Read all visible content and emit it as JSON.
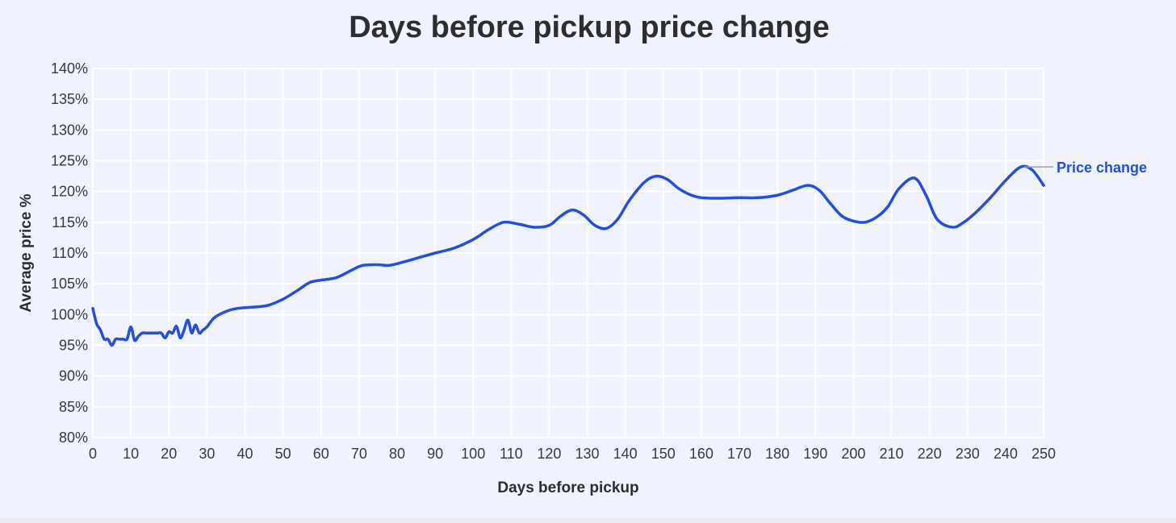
{
  "chart_data": {
    "type": "line",
    "title": "Days before pickup price change",
    "xlabel": "Days before pickup",
    "ylabel": "Average price %",
    "xlim": [
      0,
      250
    ],
    "ylim": [
      80,
      140
    ],
    "x_ticks": [
      0,
      10,
      20,
      30,
      40,
      50,
      60,
      70,
      80,
      90,
      100,
      110,
      120,
      130,
      140,
      150,
      160,
      170,
      180,
      190,
      200,
      210,
      220,
      230,
      240,
      250
    ],
    "x_tick_labels": [
      "0",
      "10",
      "20",
      "30",
      "40",
      "50",
      "60",
      "70",
      "80",
      "90",
      "100",
      "110",
      "120",
      "130",
      "140",
      "150",
      "160",
      "170",
      "180",
      "190",
      "200",
      "210",
      "220",
      "230",
      "240",
      "250"
    ],
    "y_ticks": [
      80,
      85,
      90,
      95,
      100,
      105,
      110,
      115,
      120,
      125,
      130,
      135,
      140
    ],
    "y_tick_labels": [
      "80%",
      "85%",
      "90%",
      "95%",
      "100%",
      "105%",
      "110%",
      "115%",
      "120%",
      "125%",
      "130%",
      "135%",
      "140%"
    ],
    "grid": true,
    "legend": "none",
    "colors": {
      "line": "#264de4",
      "grid": "#ffffff",
      "background": "#f0f3fe",
      "label_leader": "#a0a0a0"
    },
    "series": [
      {
        "name": "Price change",
        "x": [
          0,
          1,
          2,
          3,
          4,
          5,
          6,
          7,
          8,
          9,
          10,
          11,
          12,
          13,
          14,
          15,
          16,
          17,
          18,
          19,
          20,
          21,
          22,
          23,
          24,
          25,
          26,
          27,
          28,
          29,
          30,
          32,
          35,
          38,
          42,
          46,
          50,
          54,
          57,
          60,
          64,
          68,
          71,
          75,
          78,
          82,
          86,
          90,
          95,
          100,
          104,
          108,
          112,
          116,
          120,
          123,
          126,
          129,
          132,
          135,
          138,
          141,
          145,
          148,
          151,
          154,
          157,
          160,
          165,
          170,
          175,
          180,
          184,
          188,
          191,
          194,
          197,
          200,
          203,
          206,
          209,
          212,
          216,
          219,
          222,
          226,
          229,
          232,
          236,
          240,
          244,
          247,
          250
        ],
        "y": [
          101,
          98.5,
          97.5,
          96,
          96,
          95,
          96,
          96,
          96,
          96,
          98,
          95.8,
          96.5,
          97,
          97,
          97,
          97,
          97,
          97,
          96.2,
          97.2,
          97,
          98.1,
          96.2,
          97.5,
          99.1,
          97,
          98.3,
          97,
          97.5,
          98,
          99.5,
          100.5,
          101,
          101.2,
          101.5,
          102.5,
          104,
          105.2,
          105.6,
          106,
          107.2,
          108,
          108.1,
          108,
          108.6,
          109.3,
          110,
          110.8,
          112.2,
          113.8,
          115,
          114.7,
          114.2,
          114.5,
          116,
          117,
          116.2,
          114.5,
          114,
          115.5,
          118.5,
          121.5,
          122.5,
          122,
          120.5,
          119.5,
          119,
          118.9,
          119,
          119,
          119.4,
          120.2,
          121,
          120.2,
          118,
          116,
          115.2,
          115,
          115.8,
          117.5,
          120.5,
          122.2,
          119.5,
          115.5,
          114.2,
          115,
          116.5,
          119,
          121.8,
          124,
          123.5,
          121
        ]
      }
    ]
  }
}
